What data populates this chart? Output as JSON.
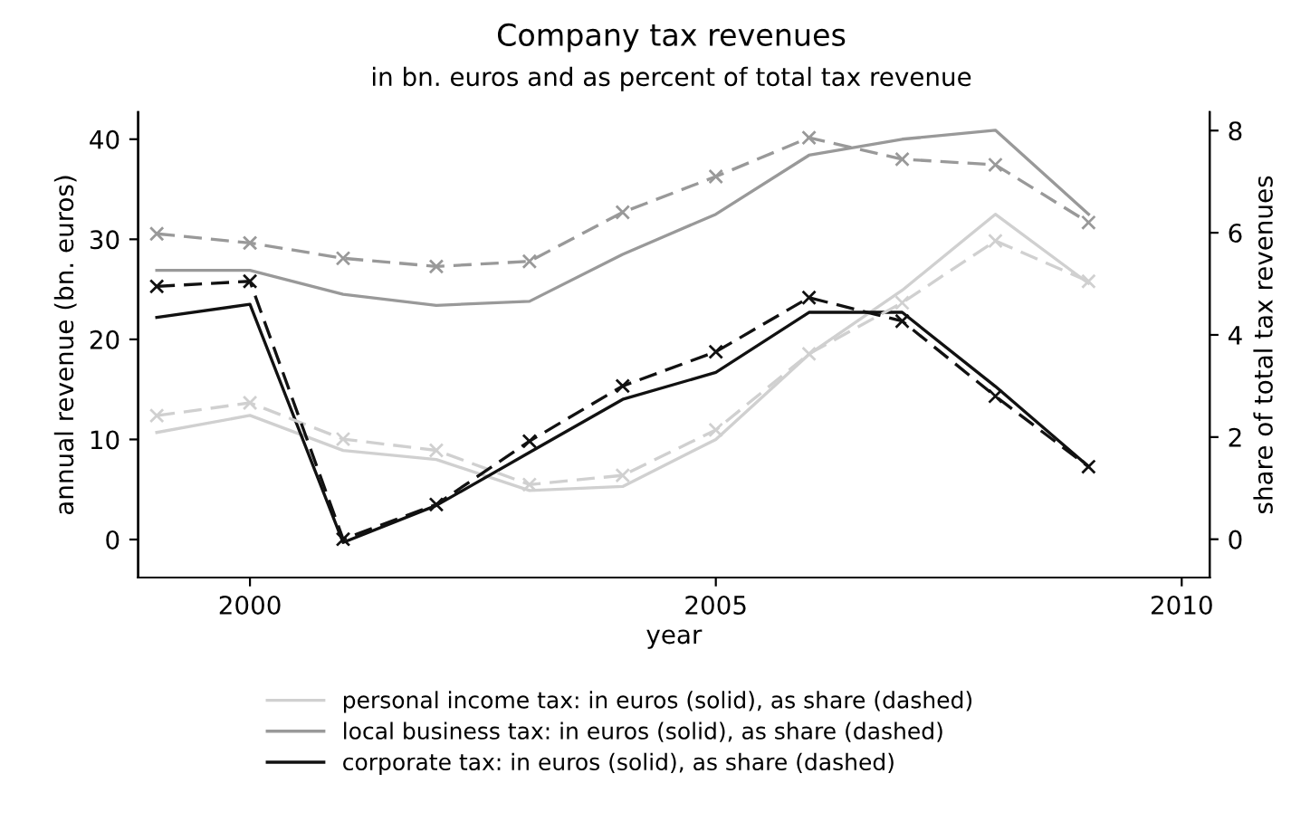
{
  "chart_data": {
    "type": "line",
    "title": "Company tax revenues",
    "subtitle": "in bn. euros and as percent of total tax revenue",
    "xlabel": "year",
    "ylabel": "annual revenue (bn. euros)",
    "y2label": "share of total tax revenues",
    "x": [
      1999,
      2000,
      2001,
      2002,
      2003,
      2004,
      2005,
      2006,
      2007,
      2008,
      2009
    ],
    "xlim": [
      1998.8,
      2010.3
    ],
    "xticks": [
      2000,
      2005,
      2010
    ],
    "ylim": [
      -3.8,
      42.7
    ],
    "yticks": [
      0,
      10,
      20,
      30,
      40
    ],
    "y2lim": [
      -0.75,
      8.36
    ],
    "y2ticks": [
      0,
      2,
      4,
      6,
      8
    ],
    "grid": false,
    "legend": "bottom",
    "series": [
      {
        "name": "personal income tax: in euros (solid), as share (dashed)",
        "color": "#d0d0d0",
        "line_style": "solid",
        "marker": "none",
        "values": [
          10.7,
          12.4,
          8.9,
          8.0,
          4.9,
          5.3,
          10.0,
          18.5,
          24.9,
          32.5,
          25.6
        ]
      },
      {
        "name": "local business tax: in euros (solid), as share (dashed)",
        "color": "#999999",
        "line_style": "solid",
        "marker": "none",
        "values": [
          26.9,
          26.9,
          24.5,
          23.4,
          23.8,
          28.5,
          32.5,
          38.4,
          40.0,
          40.9,
          32.5
        ]
      },
      {
        "name": "corporate tax: in euros (solid), as share (dashed)",
        "color": "#111111",
        "line_style": "solid",
        "marker": "none",
        "values": [
          22.2,
          23.5,
          -0.3,
          3.4,
          8.7,
          14.0,
          16.7,
          22.7,
          22.7,
          15.3,
          7.3
        ]
      },
      {
        "color": "#d0d0d0",
        "axis": "y2",
        "line_style": "dashed",
        "marker": "cross",
        "values": [
          2.42,
          2.67,
          1.96,
          1.74,
          1.07,
          1.25,
          2.14,
          3.63,
          4.63,
          5.84,
          5.05
        ]
      },
      {
        "color": "#999999",
        "axis": "y2",
        "line_style": "dashed",
        "marker": "cross",
        "values": [
          5.98,
          5.8,
          5.5,
          5.34,
          5.44,
          6.4,
          7.1,
          7.86,
          7.44,
          7.33,
          6.2
        ]
      },
      {
        "color": "#111111",
        "axis": "y2",
        "line_style": "dashed",
        "marker": "cross",
        "values": [
          4.95,
          5.05,
          0.0,
          0.68,
          1.92,
          3.0,
          3.67,
          4.73,
          4.27,
          2.8,
          1.42
        ]
      }
    ]
  }
}
